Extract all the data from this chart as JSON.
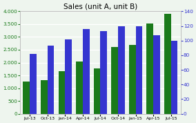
{
  "title": "Sales (unit A, unit B)",
  "categories": [
    "Jul-13",
    "Oct-13",
    "Jan-14",
    "Apr-14",
    "Jul-14",
    "Oct-14",
    "Jan-15",
    "Apr-15",
    "Jul-15"
  ],
  "green_bars": [
    1250,
    1300,
    1650,
    2050,
    1780,
    2620,
    2680,
    3530,
    3900
  ],
  "blue_bars": [
    82,
    93,
    102,
    116,
    113,
    120,
    120,
    107,
    100
  ],
  "green_color": "#1a7a1a",
  "blue_color": "#3535d0",
  "left_ylim": [
    0,
    4000
  ],
  "right_ylim": [
    0,
    140
  ],
  "left_yticks": [
    0,
    500,
    1000,
    1500,
    2000,
    2500,
    3000,
    3500,
    4000
  ],
  "right_yticks": [
    0,
    20,
    40,
    60,
    80,
    100,
    120,
    140
  ],
  "left_tick_color": "#1a7a1a",
  "right_tick_color": "#3535d0",
  "background_color": "#eef5ee",
  "grid_color": "#ffffff",
  "bar_width": 0.38,
  "title_fontsize": 7.5
}
